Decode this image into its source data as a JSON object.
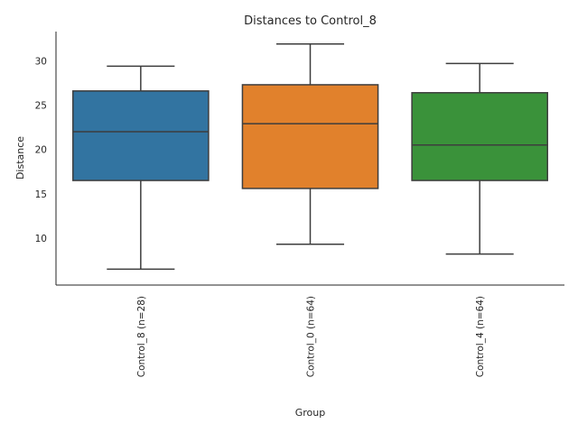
{
  "chart_data": {
    "type": "box",
    "title": "Distances to Control_8",
    "xlabel": "Group",
    "ylabel": "Distance",
    "ylim": [
      4.7,
      33.3
    ],
    "yticks": [
      10,
      15,
      20,
      25,
      30
    ],
    "grid": false,
    "legend": "none",
    "categories": [
      "Control_8 (n=28)",
      "Control_0 (n=64)",
      "Control_4 (n=64)"
    ],
    "boxes": [
      {
        "category": "Control_8 (n=28)",
        "min": 6.5,
        "q1": 16.5,
        "median": 22.0,
        "q3": 26.6,
        "max": 29.4,
        "color": "#3274a1"
      },
      {
        "category": "Control_0 (n=64)",
        "min": 9.3,
        "q1": 15.6,
        "median": 22.9,
        "q3": 27.3,
        "max": 31.9,
        "color": "#e1812c"
      },
      {
        "category": "Control_4 (n=64)",
        "min": 8.2,
        "q1": 16.5,
        "median": 20.5,
        "q3": 26.4,
        "max": 29.7,
        "color": "#3a923a"
      }
    ]
  }
}
